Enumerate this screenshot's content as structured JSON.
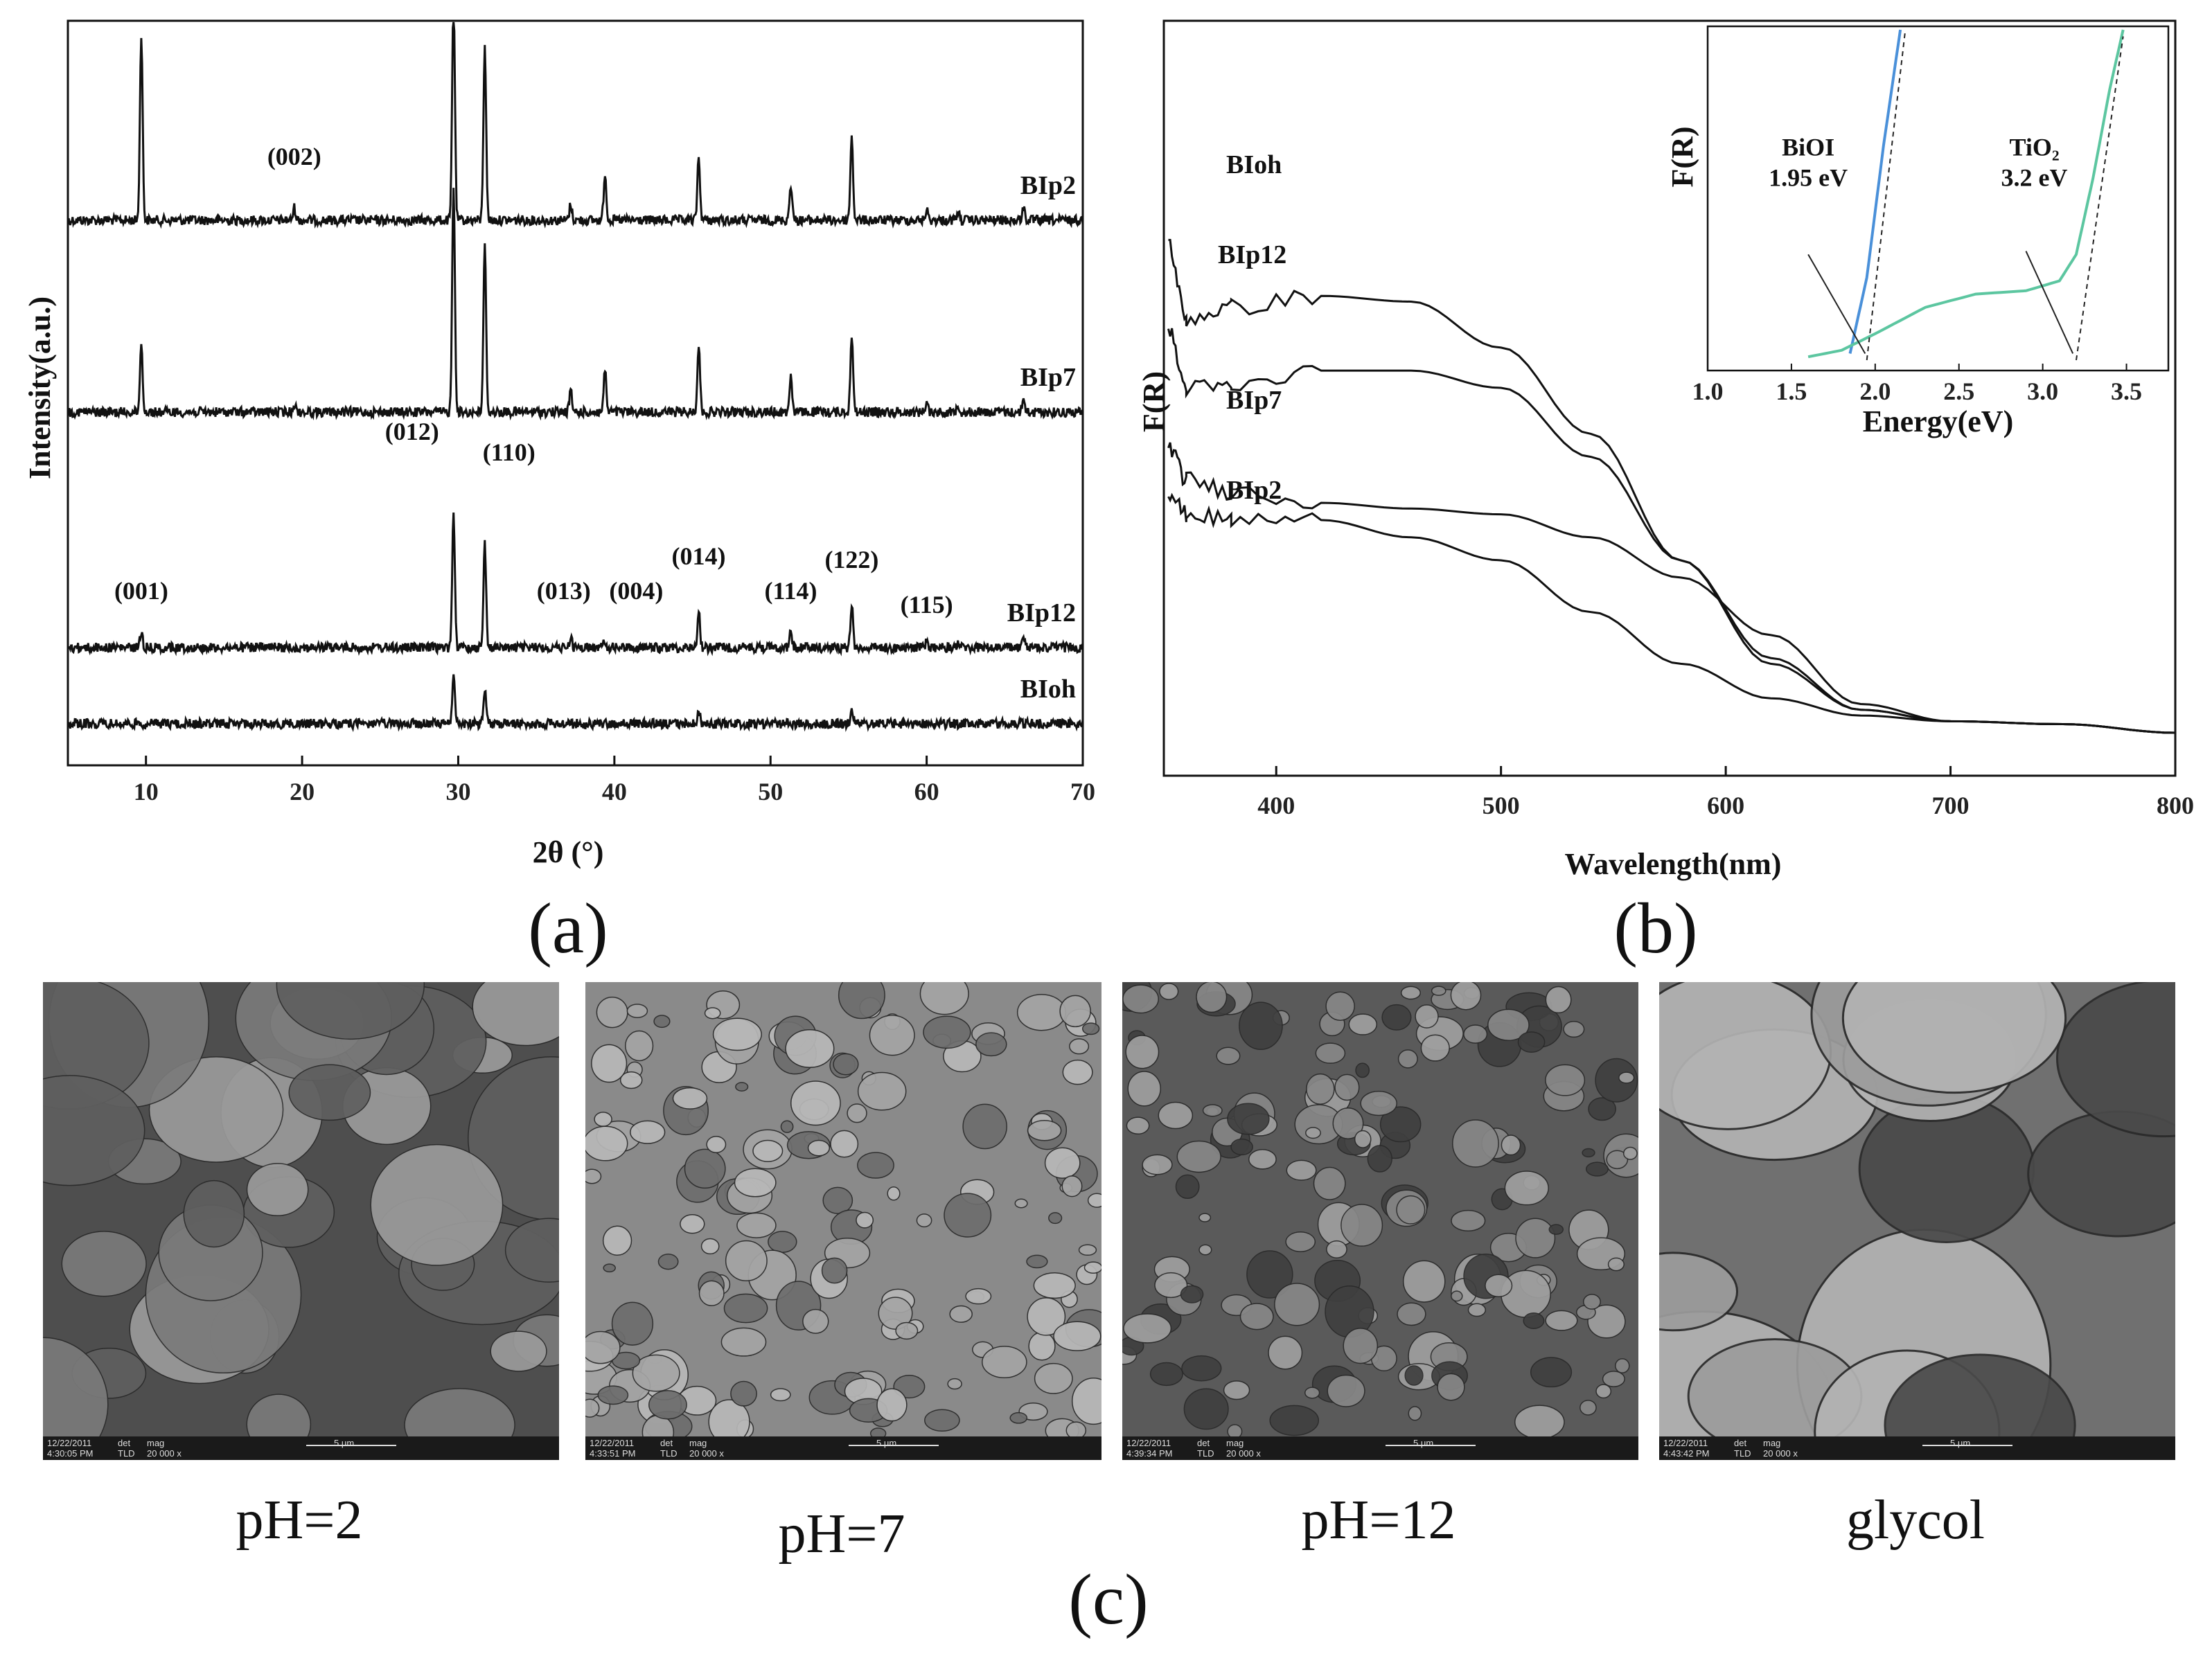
{
  "chart_data": [
    {
      "type": "line",
      "panel_label": "(a)",
      "xlabel": "2θ (°)",
      "ylabel": "Intensity(a.u.)",
      "xlim": [
        5,
        70
      ],
      "xticks": [
        10,
        20,
        30,
        40,
        50,
        60,
        70
      ],
      "series": [
        {
          "name": "BIp2",
          "offset": 3.0,
          "color": "#111111",
          "peaks": [
            [
              9.7,
              1.8
            ],
            [
              19.5,
              0.12
            ],
            [
              29.7,
              2.2
            ],
            [
              31.7,
              1.7
            ],
            [
              37.2,
              0.15
            ],
            [
              39.4,
              0.45
            ],
            [
              45.4,
              0.6
            ],
            [
              51.3,
              0.35
            ],
            [
              55.2,
              0.8
            ],
            [
              60.0,
              0.1
            ],
            [
              62.0,
              0.08
            ],
            [
              66.2,
              0.12
            ]
          ]
        },
        {
          "name": "BIp7",
          "offset": 2.0,
          "color": "#111111",
          "peaks": [
            [
              9.7,
              0.65
            ],
            [
              19.5,
              0.08
            ],
            [
              29.7,
              2.2
            ],
            [
              31.7,
              1.6
            ],
            [
              37.2,
              0.2
            ],
            [
              39.4,
              0.4
            ],
            [
              45.4,
              0.65
            ],
            [
              51.3,
              0.35
            ],
            [
              55.2,
              0.75
            ],
            [
              60.0,
              0.1
            ],
            [
              62.0,
              0.08
            ],
            [
              66.2,
              0.12
            ]
          ]
        },
        {
          "name": "BIp12",
          "offset": 1.0,
          "color": "#111111",
          "peaks": [
            [
              9.7,
              0.15
            ],
            [
              29.7,
              1.3
            ],
            [
              31.7,
              1.0
            ],
            [
              37.2,
              0.1
            ],
            [
              39.4,
              0.07
            ],
            [
              45.4,
              0.35
            ],
            [
              51.3,
              0.15
            ],
            [
              55.2,
              0.4
            ],
            [
              60.0,
              0.05
            ],
            [
              62.0,
              0.05
            ],
            [
              66.2,
              0.07
            ]
          ]
        },
        {
          "name": "BIoh",
          "offset": 0.0,
          "color": "#111111",
          "peaks": [
            [
              29.7,
              0.45
            ],
            [
              31.7,
              0.35
            ],
            [
              45.4,
              0.12
            ],
            [
              55.2,
              0.15
            ]
          ]
        }
      ],
      "annotations": [
        {
          "text": "(002)",
          "x": 19.5,
          "series": "BIp2"
        },
        {
          "text": "(001)",
          "x": 9.7,
          "series": "BIp12"
        },
        {
          "text": "(012)",
          "x": 29.7,
          "series": "BIp12"
        },
        {
          "text": "(110)",
          "x": 31.7,
          "series": "BIp12"
        },
        {
          "text": "(013)",
          "x": 37.2,
          "series": "BIp12"
        },
        {
          "text": "(004)",
          "x": 39.4,
          "series": "BIp12"
        },
        {
          "text": "(014)",
          "x": 45.4,
          "series": "BIp12"
        },
        {
          "text": "(114)",
          "x": 51.3,
          "series": "BIp12"
        },
        {
          "text": "(122)",
          "x": 55.2,
          "series": "BIp12"
        },
        {
          "text": "(115)",
          "x": 60.0,
          "series": "BIp12"
        }
      ]
    },
    {
      "type": "line",
      "panel_label": "(b)",
      "xlabel": "Wavelength(nm)",
      "ylabel": "F(R)",
      "xlim": [
        350,
        800
      ],
      "xticks": [
        400,
        500,
        600,
        700,
        800
      ],
      "ylim": [
        0,
        1
      ],
      "series": [
        {
          "name": "BIoh",
          "color": "#111111",
          "x": [
            352,
            360,
            380,
            420,
            460,
            500,
            540,
            580,
            620,
            660,
            700,
            750,
            800
          ],
          "y": [
            0.85,
            0.72,
            0.74,
            0.76,
            0.75,
            0.67,
            0.52,
            0.3,
            0.13,
            0.04,
            0.02,
            0.015,
            0.0
          ]
        },
        {
          "name": "BIp12",
          "color": "#111111",
          "x": [
            352,
            360,
            380,
            420,
            460,
            500,
            540,
            580,
            620,
            660,
            700,
            750,
            800
          ],
          "y": [
            0.7,
            0.6,
            0.6,
            0.63,
            0.63,
            0.6,
            0.48,
            0.3,
            0.12,
            0.04,
            0.02,
            0.015,
            0.0
          ]
        },
        {
          "name": "BIp7",
          "color": "#111111",
          "x": [
            352,
            360,
            380,
            420,
            460,
            500,
            540,
            580,
            620,
            660,
            700,
            750,
            800
          ],
          "y": [
            0.5,
            0.44,
            0.42,
            0.4,
            0.39,
            0.38,
            0.34,
            0.27,
            0.17,
            0.05,
            0.02,
            0.015,
            0.0
          ]
        },
        {
          "name": "BIp2",
          "color": "#111111",
          "x": [
            352,
            360,
            380,
            420,
            460,
            500,
            540,
            580,
            620,
            660,
            700,
            750,
            800
          ],
          "y": [
            0.42,
            0.38,
            0.37,
            0.37,
            0.34,
            0.3,
            0.21,
            0.12,
            0.06,
            0.03,
            0.02,
            0.015,
            0.0
          ]
        }
      ],
      "inset": {
        "xlabel": "Energy(eV)",
        "ylabel": "F(R)",
        "xlim": [
          1.0,
          3.75
        ],
        "xticks": [
          1.0,
          1.5,
          2.0,
          2.5,
          3.0,
          3.5
        ],
        "series": [
          {
            "name": "BiOI",
            "color": "#4a90d9",
            "x": [
              1.85,
              1.95,
              2.05,
              2.15
            ],
            "y": [
              0.02,
              0.25,
              0.65,
              1.0
            ]
          },
          {
            "name": "TiO2",
            "color": "#5cc6a0",
            "x": [
              1.6,
              1.8,
              2.0,
              2.3,
              2.6,
              2.9,
              3.1,
              3.2,
              3.3,
              3.4,
              3.48
            ],
            "y": [
              0.01,
              0.03,
              0.08,
              0.16,
              0.2,
              0.21,
              0.24,
              0.32,
              0.55,
              0.82,
              1.0
            ]
          }
        ],
        "annotations": [
          {
            "text": "BiOI",
            "sub": "1.95 eV"
          },
          {
            "text": "TiO₂",
            "sub": "3.2 eV"
          }
        ]
      }
    }
  ],
  "panel_c": {
    "label": "(c)",
    "images": [
      {
        "caption": "pH=2",
        "date": "12/22/2011",
        "time": "4:30:05 PM",
        "det": "TLD",
        "mag": "20 000 x",
        "scale": "5 μm"
      },
      {
        "caption": "pH=7",
        "date": "12/22/2011",
        "time": "4:33:51 PM",
        "det": "TLD",
        "mag": "20 000 x",
        "scale": "5 μm"
      },
      {
        "caption": "pH=12",
        "date": "12/22/2011",
        "time": "4:39:34 PM",
        "det": "TLD",
        "mag": "20 000 x",
        "scale": "5 μm"
      },
      {
        "caption": "glycol",
        "date": "12/22/2011",
        "time": "4:43:42 PM",
        "det": "TLD",
        "mag": "20 000 x",
        "scale": "5 μm"
      }
    ],
    "bar_headers": {
      "det": "det",
      "mag": "mag"
    }
  }
}
